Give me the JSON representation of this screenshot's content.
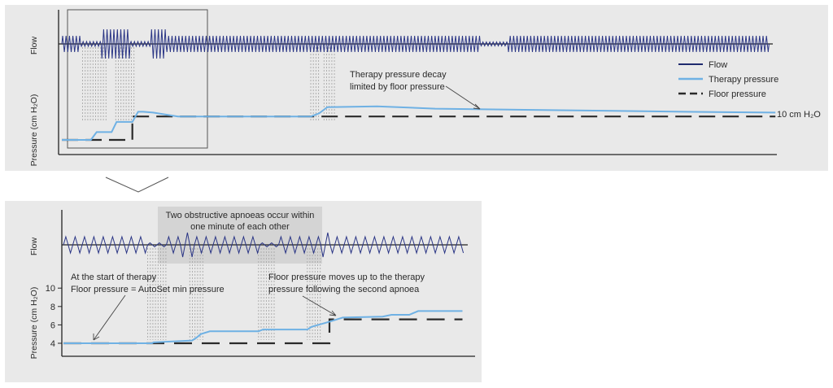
{
  "chart_data": [
    {
      "type": "line",
      "panel": "overview",
      "y_axes": [
        {
          "label": "Flow"
        },
        {
          "label": "Pressure (cm H₂O)"
        }
      ],
      "legend": {
        "placement": "right",
        "entries": [
          {
            "name": "Flow",
            "color": "#1f2a6e",
            "style": "solid"
          },
          {
            "name": "Therapy pressure",
            "color": "#6fb1e4",
            "style": "solid"
          },
          {
            "name": "Floor pressure",
            "color": "#2a2a2a",
            "style": "dashed"
          }
        ]
      },
      "annotations": [
        {
          "id": "decay",
          "lines": [
            "Therapy pressure decay",
            "limited by floor pressure"
          ]
        },
        {
          "id": "end_level",
          "text": "10 cm H₂O"
        }
      ],
      "therapy_pressure": [
        [
          0,
          4
        ],
        [
          3.5,
          4
        ],
        [
          4.2,
          5
        ],
        [
          6,
          5
        ],
        [
          6.6,
          6.3
        ],
        [
          8.5,
          6.3
        ],
        [
          9.2,
          7.6
        ],
        [
          9.8,
          7.6
        ],
        [
          11,
          7.5
        ],
        [
          14,
          7
        ],
        [
          18,
          7
        ],
        [
          25,
          7
        ],
        [
          30,
          7
        ],
        [
          31,
          7.4
        ],
        [
          32,
          8.2
        ],
        [
          38,
          8.3
        ],
        [
          45,
          8
        ],
        [
          60,
          7.8
        ],
        [
          75,
          7.6
        ],
        [
          86,
          7.5
        ]
      ],
      "floor_pressure": [
        [
          0,
          4
        ],
        [
          5.3,
          4
        ],
        [
          8.5,
          4
        ],
        [
          8.5,
          7
        ],
        [
          14,
          7
        ],
        [
          26,
          7
        ],
        [
          32,
          7
        ],
        [
          86,
          7
        ]
      ],
      "apnoea_regions": [
        [
          2.5,
          5.5
        ],
        [
          6.5,
          9
        ],
        [
          30,
          31
        ],
        [
          31.6,
          33
        ]
      ]
    },
    {
      "type": "line",
      "panel": "detail",
      "y_axes": [
        {
          "label": "Flow"
        },
        {
          "label": "Pressure (cm H₂O)",
          "ticks": [
            4,
            6,
            8,
            10
          ],
          "ylim": [
            3,
            11
          ]
        }
      ],
      "annotations": [
        {
          "id": "apnoeas",
          "lines": [
            "Two obstructive apnoeas occur within",
            "one minute of each other"
          ]
        },
        {
          "id": "start",
          "lines": [
            "At the start of therapy",
            "Floor pressure = AutoSet min pressure"
          ]
        },
        {
          "id": "floor_up",
          "lines": [
            "Floor pressure moves up to the therapy",
            "pressure following the second apnoea"
          ]
        }
      ],
      "therapy_pressure": [
        [
          0,
          4
        ],
        [
          20,
          4
        ],
        [
          20.3,
          4.1
        ],
        [
          29,
          4.3
        ],
        [
          30,
          4.6
        ],
        [
          31,
          5
        ],
        [
          33,
          5.3
        ],
        [
          44,
          5.3
        ],
        [
          45,
          5.5
        ],
        [
          55,
          5.5
        ],
        [
          56,
          5.8
        ],
        [
          59,
          6.2
        ],
        [
          61,
          6.5
        ],
        [
          63,
          6.8
        ],
        [
          72,
          6.9
        ],
        [
          74,
          7.1
        ],
        [
          78,
          7.1
        ],
        [
          80,
          7.5
        ],
        [
          90,
          7.5
        ]
      ],
      "floor_pressure": [
        [
          0,
          4
        ],
        [
          60,
          4
        ],
        [
          60,
          6.6
        ],
        [
          90,
          6.6
        ]
      ],
      "apnoea_regions": [
        [
          19,
          23.5
        ],
        [
          28.5,
          32
        ],
        [
          44,
          48
        ],
        [
          55,
          58.5
        ]
      ]
    }
  ]
}
